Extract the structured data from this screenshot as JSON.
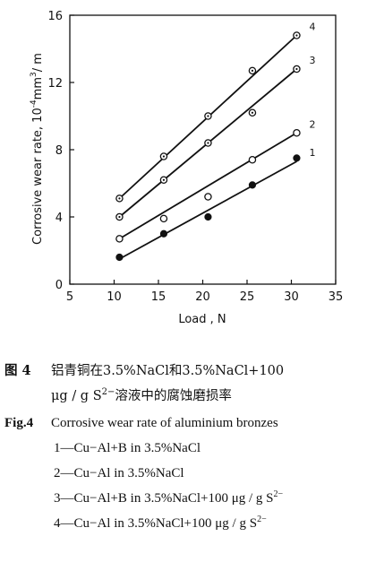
{
  "chart_data": {
    "type": "line",
    "xlabel": "Load , N",
    "ylabel_prefix": "Corrosive  wear  rate, 10",
    "ylabel_exp": "-4",
    "ylabel_unit": "mm",
    "ylabel_unit_exp": "3",
    "ylabel_suffix": "/ m",
    "xlim": [
      5,
      35
    ],
    "ylim": [
      0,
      16
    ],
    "x_ticks": [
      "5",
      "10",
      "15",
      "20",
      "25",
      "30",
      "35"
    ],
    "y_ticks": [
      "0",
      "4",
      "8",
      "12",
      "16"
    ],
    "grid": false,
    "series": [
      {
        "name": "1",
        "marker": "filled",
        "x": [
          10.6,
          15.6,
          20.6,
          25.6,
          30.6
        ],
        "y": [
          1.6,
          3.0,
          4.0,
          5.9,
          7.5
        ],
        "fit": [
          [
            10.6,
            1.5
          ],
          [
            30.6,
            7.3
          ]
        ]
      },
      {
        "name": "2",
        "marker": "open",
        "x": [
          10.6,
          15.6,
          20.6,
          25.6,
          30.6
        ],
        "y": [
          2.7,
          3.9,
          5.2,
          7.4,
          9.0
        ],
        "fit": [
          [
            10.6,
            2.7
          ],
          [
            30.6,
            9.0
          ]
        ]
      },
      {
        "name": "3",
        "marker": "open-dot",
        "x": [
          10.6,
          15.6,
          20.6,
          25.6,
          30.6
        ],
        "y": [
          4.0,
          6.2,
          8.4,
          10.2,
          12.8
        ],
        "fit": [
          [
            10.6,
            4.0
          ],
          [
            30.6,
            12.8
          ]
        ]
      },
      {
        "name": "4",
        "marker": "open-dot",
        "x": [
          10.6,
          15.6,
          20.6,
          25.6,
          30.6
        ],
        "y": [
          5.1,
          7.6,
          10.0,
          12.7,
          14.8
        ],
        "fit": [
          [
            10.6,
            5.1
          ],
          [
            30.6,
            14.8
          ]
        ]
      }
    ]
  },
  "caption": {
    "cn_label": "图 4",
    "cn_line1": "铝青铜在3.5%NaCl和3.5%NaCl+100",
    "cn_line2_a": "μg / g S",
    "cn_line2_sup": "2−",
    "cn_line2_b": "溶液中的腐蚀磨损率",
    "en_label": "Fig.4",
    "en_title": "Corrosive wear rate of aluminium bronzes",
    "legend_1": "1—Cu−Al+B in 3.5%NaCl",
    "legend_2": "2—Cu−Al in 3.5%NaCl",
    "legend_3": "3—Cu−Al+B in 3.5%NaCl+100 μg / g S",
    "legend_3_sup": "2−",
    "legend_4": "4—Cu−Al in 3.5%NaCl+100 μg / g S",
    "legend_4_sup": "2−"
  }
}
